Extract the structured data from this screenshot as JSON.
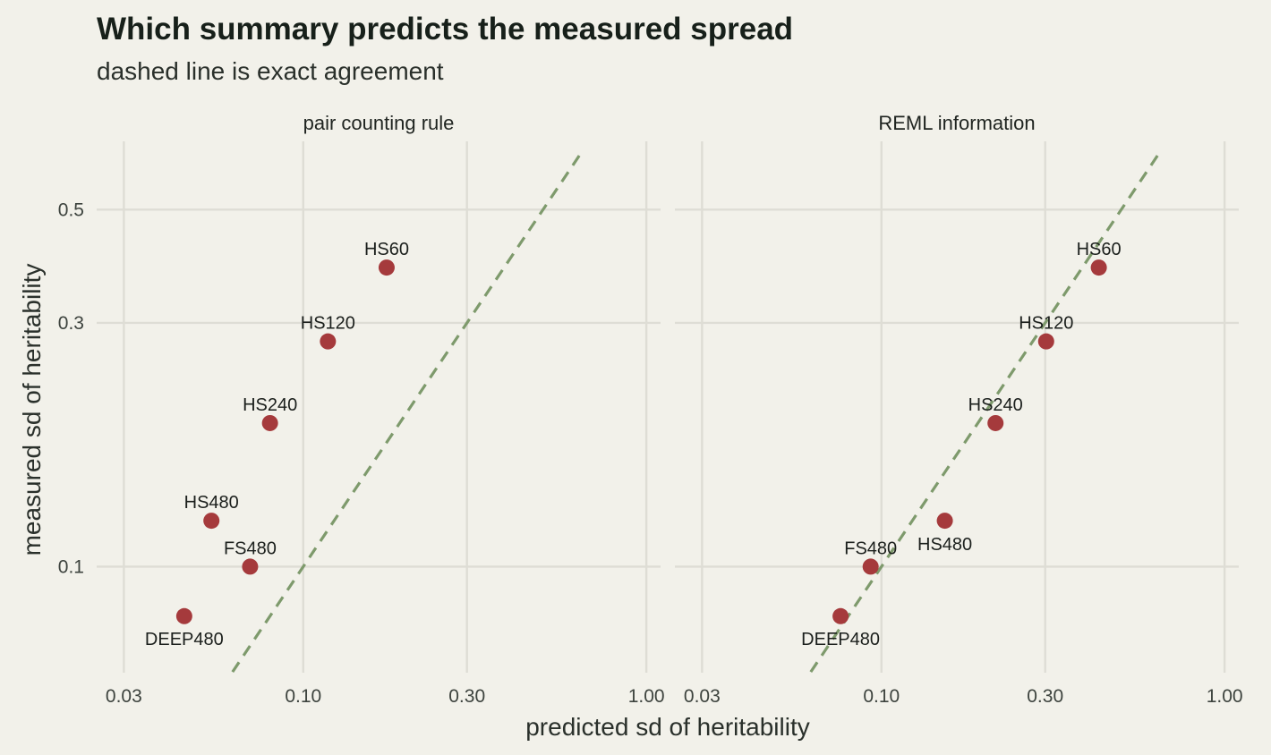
{
  "title": "Which summary predicts the measured spread",
  "subtitle": "dashed line is exact agreement",
  "colors": {
    "background": "#f2f1ea",
    "grid": "#deddd5",
    "point": "#a53a3c",
    "reference_line": "#7e9a6c"
  },
  "chart_data": {
    "type": "scatter",
    "scale": {
      "x": "log10",
      "y": "log10"
    },
    "xlabel": "predicted sd of heritability",
    "ylabel": "measured sd of heritability",
    "xlim": [
      0.025,
      1.1
    ],
    "ylim": [
      0.062,
      0.68
    ],
    "x_ticks": [
      0.03,
      0.1,
      0.3,
      1.0
    ],
    "x_tick_labels": [
      "0.03",
      "0.10",
      "0.30",
      "1.00"
    ],
    "y_ticks": [
      0.1,
      0.3,
      0.5
    ],
    "y_tick_labels": [
      "0.1",
      "0.3",
      "0.5"
    ],
    "grid": true,
    "reference_line": "y = x (dashed)",
    "panels": [
      {
        "name": "pair counting rule",
        "points": [
          {
            "label": "HS60",
            "x": 0.175,
            "y": 0.385
          },
          {
            "label": "HS120",
            "x": 0.118,
            "y": 0.276
          },
          {
            "label": "HS240",
            "x": 0.08,
            "y": 0.191
          },
          {
            "label": "HS480",
            "x": 0.054,
            "y": 0.123
          },
          {
            "label": "FS480",
            "x": 0.07,
            "y": 0.1
          },
          {
            "label": "DEEP480",
            "x": 0.045,
            "y": 0.08
          }
        ]
      },
      {
        "name": "REML information",
        "points": [
          {
            "label": "HS60",
            "x": 0.43,
            "y": 0.385
          },
          {
            "label": "HS120",
            "x": 0.302,
            "y": 0.276
          },
          {
            "label": "HS240",
            "x": 0.215,
            "y": 0.191
          },
          {
            "label": "HS480",
            "x": 0.153,
            "y": 0.123
          },
          {
            "label": "FS480",
            "x": 0.093,
            "y": 0.1
          },
          {
            "label": "DEEP480",
            "x": 0.076,
            "y": 0.08
          }
        ]
      }
    ]
  }
}
